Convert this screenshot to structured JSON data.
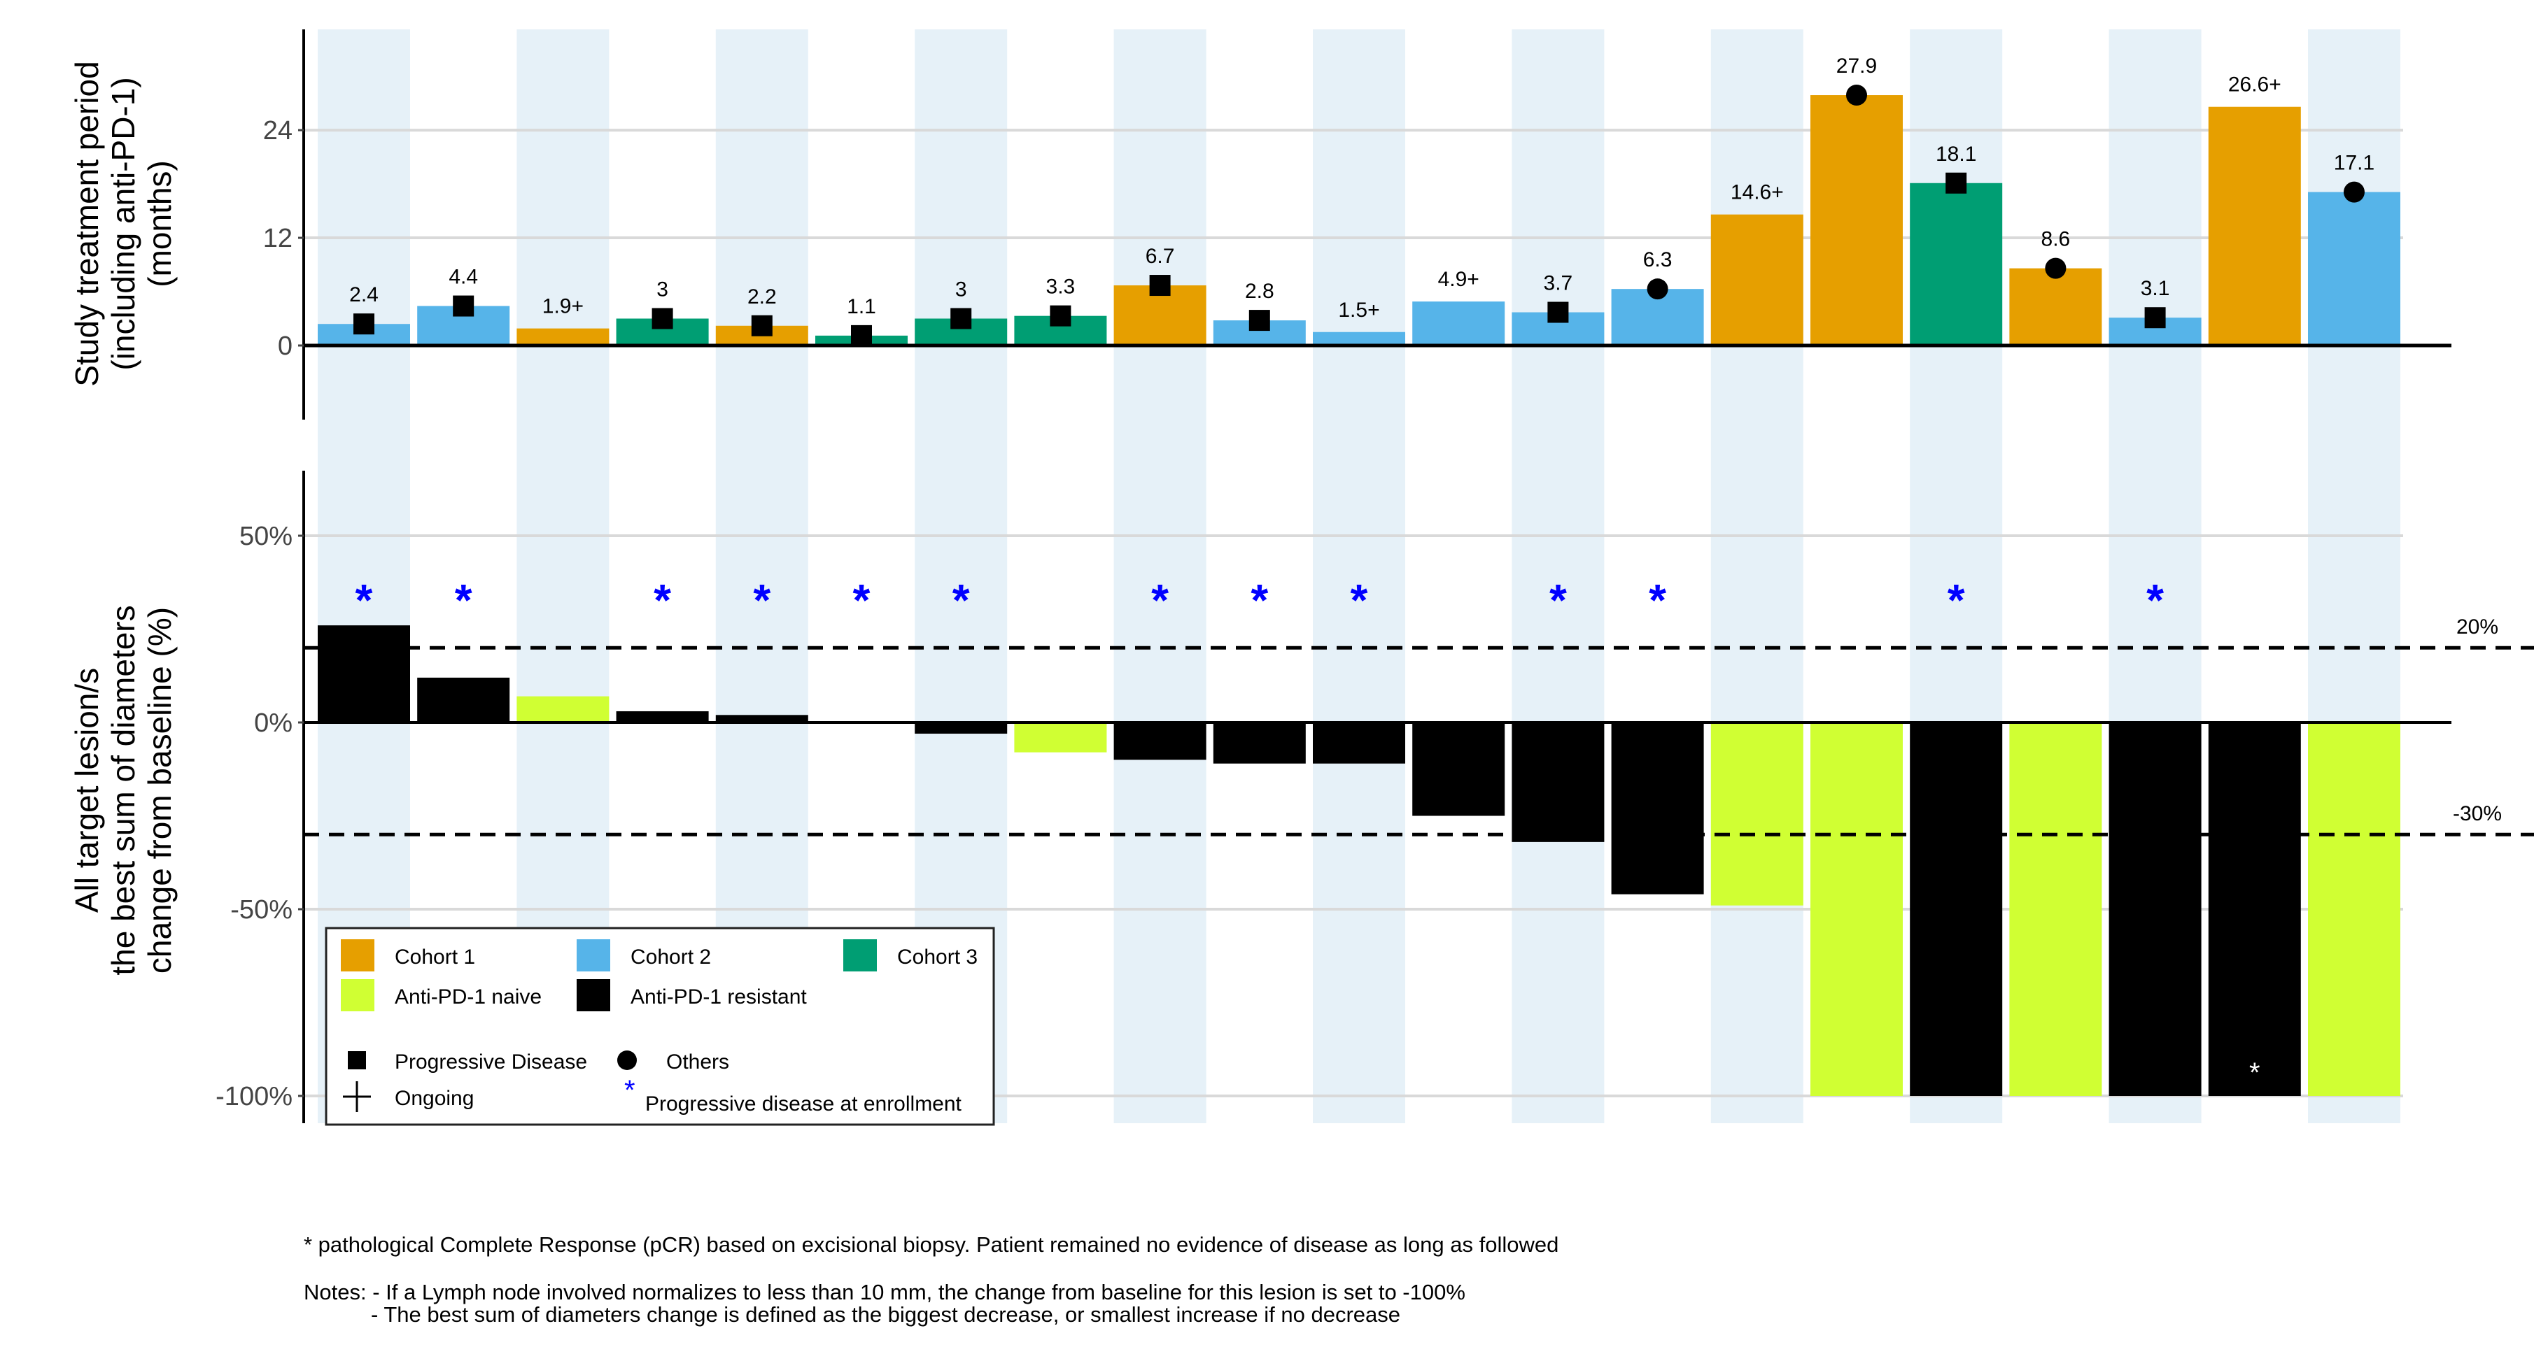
{
  "colors": {
    "cohort_1": "#E69F00",
    "cohort_2": "#56B4E9",
    "cohort_3": "#009E73",
    "anti_pd1_naive": "#D0FF33",
    "anti_pd1_resistant": "#000000",
    "column_band": "#E6F1F8",
    "enrollment_asterisk": "#0000FF"
  },
  "chart_data": [
    {
      "type": "bar",
      "panel": "top",
      "ylabel_lines": [
        "Study treatment period",
        "(including anti-PD-1)",
        "(months)"
      ],
      "ylim": [
        -3.5,
        30
      ],
      "yticks": [
        0,
        12,
        24
      ],
      "ytick_labels": [
        "0",
        "12",
        "24"
      ],
      "grid": true,
      "values": [
        2.4,
        4.4,
        1.9,
        3,
        2.2,
        1.1,
        3,
        3.3,
        6.7,
        2.8,
        1.5,
        4.9,
        3.7,
        6.3,
        14.6,
        27.9,
        18.1,
        8.6,
        3.1,
        26.6,
        17.1
      ],
      "labels": [
        "2.4",
        "4.4",
        "1.9+",
        "3",
        "2.2",
        "1.1",
        "3",
        "3.3",
        "6.7",
        "2.8",
        "1.5+",
        "4.9+",
        "3.7",
        "6.3",
        "14.6+",
        "27.9",
        "18.1",
        "8.6",
        "3.1",
        "26.6+",
        "17.1"
      ],
      "cohort": [
        2,
        2,
        1,
        3,
        1,
        3,
        3,
        3,
        1,
        2,
        2,
        2,
        2,
        2,
        1,
        1,
        3,
        1,
        2,
        1,
        2
      ],
      "marker": [
        "square",
        "square",
        "none",
        "square",
        "square",
        "square",
        "square",
        "square",
        "square",
        "square",
        "none",
        "none",
        "square",
        "circle",
        "none",
        "circle",
        "square",
        "circle",
        "square",
        "none",
        "circle"
      ]
    },
    {
      "type": "bar",
      "panel": "bottom",
      "ylabel_lines": [
        "All target lesion/s",
        "the best sum of diameters",
        "change from baseline (%)"
      ],
      "ylim": [
        -105,
        68
      ],
      "yticks": [
        50,
        0,
        -50,
        -100
      ],
      "ytick_labels": [
        "50%",
        "0%",
        "-50%",
        "-100%"
      ],
      "grid": true,
      "values": [
        26,
        12,
        7,
        3,
        2,
        0,
        -3,
        -8,
        -10,
        -11,
        -11,
        -25,
        -32,
        -46,
        -49,
        -100,
        -100,
        -100,
        -100,
        -100,
        -100
      ],
      "group": [
        "resistant",
        "resistant",
        "naive",
        "resistant",
        "resistant",
        "resistant",
        "resistant",
        "naive",
        "resistant",
        "resistant",
        "resistant",
        "resistant",
        "resistant",
        "resistant",
        "naive",
        "naive",
        "resistant",
        "naive",
        "resistant",
        "resistant",
        "naive"
      ],
      "progressive_at_enrollment": [
        true,
        true,
        false,
        true,
        true,
        true,
        true,
        false,
        true,
        true,
        true,
        false,
        true,
        true,
        false,
        false,
        true,
        false,
        true,
        false,
        false
      ],
      "pcr": [
        false,
        false,
        false,
        false,
        false,
        false,
        false,
        false,
        false,
        false,
        false,
        false,
        false,
        false,
        false,
        false,
        false,
        false,
        false,
        true,
        false
      ],
      "reference_lines": [
        {
          "value": 20,
          "label": "20%"
        },
        {
          "value": -30,
          "label": "-30%"
        }
      ],
      "legend": {
        "placement": "bottom-left",
        "fill_items": [
          {
            "label": "Cohort 1",
            "color_key": "cohort_1"
          },
          {
            "label": "Cohort 2",
            "color_key": "cohort_2"
          },
          {
            "label": "Cohort 3",
            "color_key": "cohort_3"
          },
          {
            "label": "Anti-PD-1 naive",
            "color_key": "anti_pd1_naive"
          },
          {
            "label": "Anti-PD-1 resistant",
            "color_key": "anti_pd1_resistant"
          }
        ],
        "shape_items": [
          {
            "label": "Progressive Disease",
            "shape": "square"
          },
          {
            "label": "Others",
            "shape": "circle"
          },
          {
            "label": "Ongoing",
            "shape": "plus"
          },
          {
            "label": "Progressive disease at enrollment",
            "shape": "asterisk"
          }
        ]
      }
    }
  ],
  "footnotes": {
    "pcr": "* pathological Complete Response (pCR) based on excisional biopsy. Patient remained no evidence of disease as long as followed",
    "notes_1": "Notes: - If a Lymph node involved normalizes to less than 10 mm, the change from baseline for this lesion is set to -100%",
    "notes_2": "- The best sum of diameters change is defined as the biggest decrease, or smallest increase if no decrease"
  },
  "symbols": {
    "asterisk": "*",
    "pcr_asterisk": "*"
  }
}
